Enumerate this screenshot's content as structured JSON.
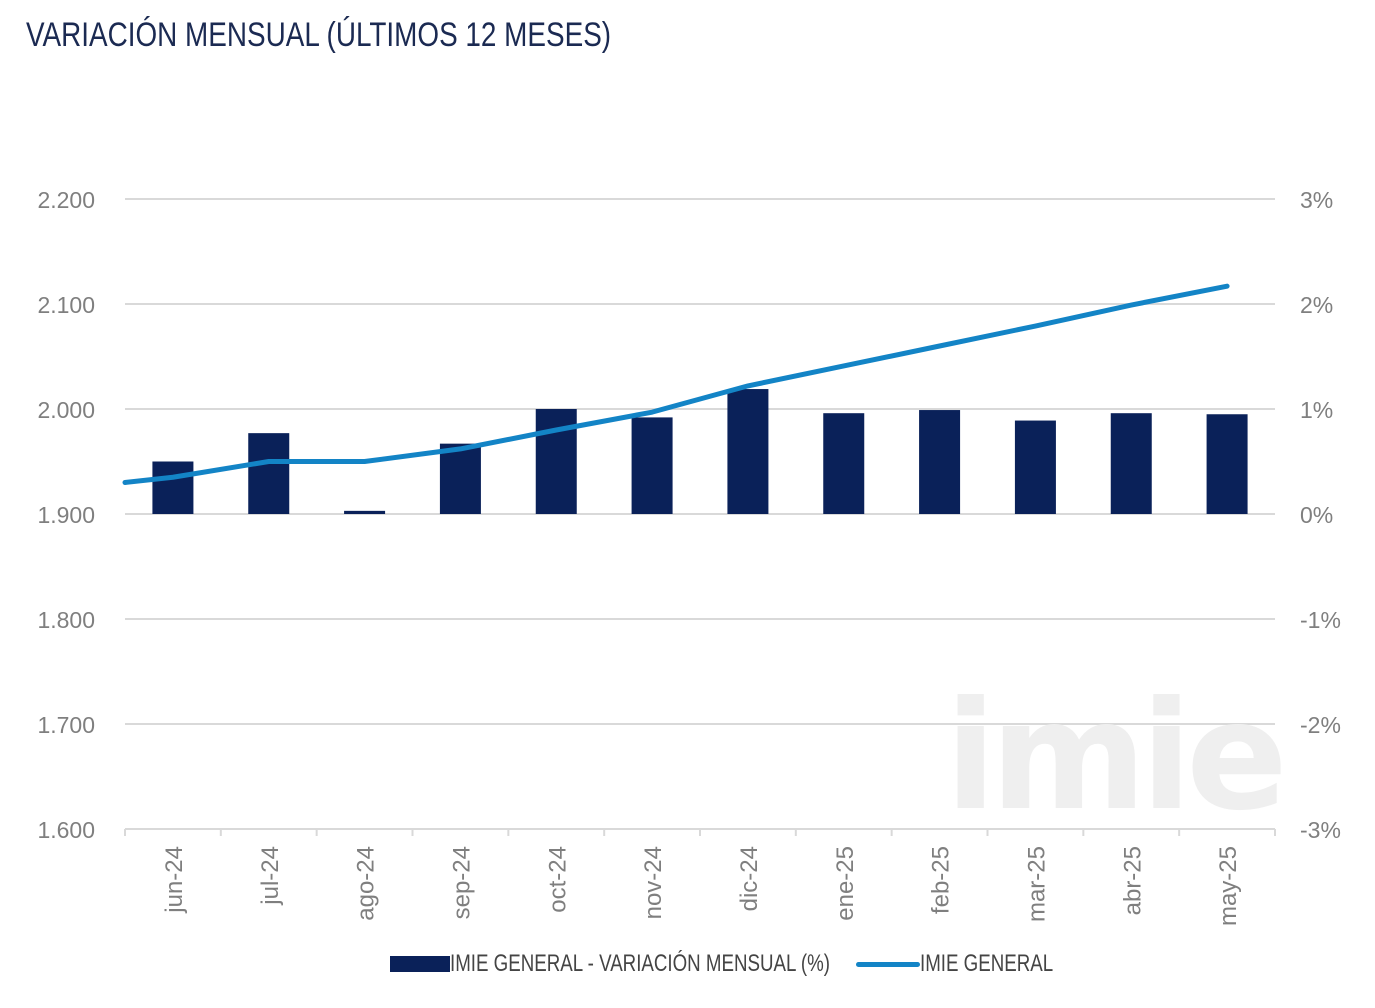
{
  "title": "VARIACIÓN MENSUAL (ÚLTIMOS 12 MESES)",
  "watermark": "imie",
  "colors": {
    "bar": "#0a2159",
    "line": "#1384c6",
    "grid": "#d9d9d9",
    "tick_text": "#7f7f7f",
    "title": "#1b2a52"
  },
  "chart_data": {
    "type": "bar+line",
    "categories": [
      "jun-24",
      "jul-24",
      "ago-24",
      "sep-24",
      "oct-24",
      "nov-24",
      "dic-24",
      "ene-25",
      "feb-25",
      "mar-25",
      "abr-25",
      "may-25"
    ],
    "left_axis": {
      "ticks": [
        "1.600",
        "1.700",
        "1.800",
        "1.900",
        "2.000",
        "2.100",
        "2.200"
      ],
      "tick_values": [
        1600,
        1700,
        1800,
        1900,
        2000,
        2100,
        2200
      ],
      "ylim": [
        1600,
        2200
      ]
    },
    "right_axis": {
      "ticks": [
        "-3%",
        "-2%",
        "-1%",
        "0%",
        "1%",
        "2%",
        "3%"
      ],
      "tick_values": [
        -3,
        -2,
        -1,
        0,
        1,
        2,
        3
      ],
      "ylim": [
        -3,
        3
      ]
    },
    "series": [
      {
        "name": "IMIE GENERAL - VARIACIÓN MENSUAL (%)",
        "type": "bar",
        "axis": "right",
        "values": [
          0.5,
          0.77,
          0.03,
          0.67,
          1.0,
          0.92,
          1.19,
          0.96,
          0.99,
          0.89,
          0.96,
          0.95
        ]
      },
      {
        "name": "IMIE GENERAL",
        "type": "line",
        "axis": "left",
        "start_value": 1930,
        "values": [
          1935,
          1950,
          1950,
          1962,
          1980,
          1997,
          2022,
          2041,
          2060,
          2079,
          2099,
          2117
        ]
      }
    ],
    "legend": [
      "IMIE GENERAL - VARIACIÓN MENSUAL (%)",
      "IMIE GENERAL"
    ],
    "legend_position": "bottom"
  }
}
